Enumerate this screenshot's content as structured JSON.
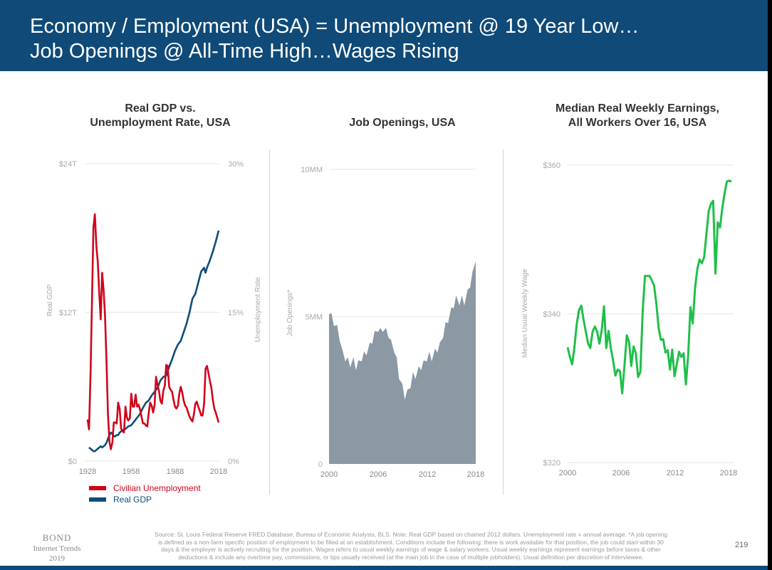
{
  "header": {
    "line1": "Economy / Employment (USA) = Unemployment @ 19 Year Low…",
    "line2": "Job Openings @ All-Time High…Wages Rising"
  },
  "colors": {
    "header_bg": "#0f4a78",
    "unemployment": "#d0021b",
    "gdp": "#0e4d78",
    "job_openings": "#8c98a3",
    "earnings": "#1fbf4a"
  },
  "chart_data": [
    {
      "type": "line",
      "title_line1": "Real GDP vs.",
      "title_line2": "Unemployment Rate, USA",
      "ylabel": "Real GDP",
      "y2label": "Unemployment Rate",
      "ylim": [
        0,
        24
      ],
      "y2lim": [
        0,
        30
      ],
      "xlim": [
        1928,
        2018
      ],
      "y_ticks": [
        "$0",
        "$12T",
        "$24T"
      ],
      "y2_ticks": [
        "0%",
        "15%",
        "30%"
      ],
      "x_ticks": [
        "1928",
        "1958",
        "1988",
        "2018"
      ],
      "grid": "horizontal",
      "legend": [
        "Civilian Unemployment",
        "Real GDP"
      ],
      "legend_position": "bottom-left",
      "series": [
        {
          "name": "Civilian Unemployment",
          "axis": "right",
          "x": [
            1928,
            1929,
            1930,
            1931,
            1932,
            1933,
            1934,
            1935,
            1936,
            1937,
            1938,
            1939,
            1940,
            1941,
            1942,
            1943,
            1944,
            1945,
            1946,
            1947,
            1948,
            1949,
            1950,
            1951,
            1952,
            1953,
            1954,
            1955,
            1956,
            1957,
            1958,
            1959,
            1960,
            1961,
            1962,
            1963,
            1964,
            1965,
            1966,
            1967,
            1968,
            1969,
            1970,
            1971,
            1972,
            1973,
            1974,
            1975,
            1976,
            1977,
            1978,
            1979,
            1980,
            1981,
            1982,
            1983,
            1984,
            1985,
            1986,
            1987,
            1988,
            1989,
            1990,
            1991,
            1992,
            1993,
            1994,
            1995,
            1996,
            1997,
            1998,
            1999,
            2000,
            2001,
            2002,
            2003,
            2004,
            2005,
            2006,
            2007,
            2008,
            2009,
            2010,
            2011,
            2012,
            2013,
            2014,
            2015,
            2016,
            2017,
            2018
          ],
          "values": [
            4.2,
            3.2,
            8.7,
            15.9,
            23.6,
            24.9,
            21.7,
            20.1,
            16.9,
            14.3,
            19.0,
            17.2,
            14.6,
            9.9,
            4.7,
            1.9,
            1.2,
            1.9,
            3.9,
            3.9,
            3.8,
            5.9,
            5.3,
            3.3,
            3.0,
            2.9,
            5.5,
            4.4,
            4.1,
            4.3,
            6.8,
            5.5,
            5.5,
            6.7,
            5.5,
            5.7,
            5.2,
            4.5,
            3.8,
            3.8,
            3.6,
            3.5,
            4.9,
            5.9,
            5.6,
            4.9,
            5.6,
            8.5,
            7.7,
            7.1,
            6.1,
            5.8,
            7.1,
            7.6,
            9.7,
            9.6,
            7.5,
            7.2,
            7.0,
            6.2,
            5.5,
            5.3,
            5.6,
            6.8,
            7.5,
            6.9,
            6.1,
            5.6,
            5.4,
            4.9,
            4.5,
            4.2,
            4.0,
            4.7,
            5.8,
            6.0,
            5.5,
            5.1,
            4.6,
            4.6,
            5.8,
            9.3,
            9.6,
            8.9,
            8.1,
            7.4,
            6.2,
            5.3,
            4.9,
            4.4,
            3.9
          ]
        },
        {
          "name": "Real GDP",
          "axis": "left",
          "x": [
            1929,
            1930,
            1931,
            1932,
            1933,
            1934,
            1935,
            1936,
            1937,
            1938,
            1939,
            1940,
            1941,
            1942,
            1943,
            1944,
            1945,
            1946,
            1947,
            1948,
            1949,
            1950,
            1952,
            1954,
            1956,
            1958,
            1960,
            1962,
            1964,
            1966,
            1968,
            1970,
            1972,
            1974,
            1976,
            1978,
            1980,
            1982,
            1984,
            1986,
            1988,
            1990,
            1992,
            1994,
            1996,
            1998,
            2000,
            2002,
            2004,
            2006,
            2008,
            2009,
            2010,
            2012,
            2014,
            2016,
            2018
          ],
          "values": [
            1.1,
            1.0,
            0.9,
            0.8,
            0.8,
            0.9,
            1.0,
            1.1,
            1.2,
            1.1,
            1.2,
            1.3,
            1.5,
            1.8,
            2.1,
            2.3,
            2.2,
            2.0,
            2.0,
            2.1,
            2.1,
            2.3,
            2.5,
            2.6,
            2.8,
            2.9,
            3.2,
            3.5,
            3.8,
            4.3,
            4.7,
            4.9,
            5.3,
            5.6,
            5.9,
            6.5,
            6.8,
            6.9,
            7.6,
            8.2,
            8.9,
            9.4,
            9.7,
            10.4,
            11.1,
            12.0,
            13.1,
            13.5,
            14.4,
            15.3,
            15.6,
            15.2,
            15.6,
            16.2,
            16.9,
            17.7,
            18.6
          ]
        }
      ]
    },
    {
      "type": "area",
      "title": "Job Openings, USA",
      "ylabel": "Job Openings*",
      "ylim": [
        0,
        10
      ],
      "xlim": [
        2000,
        2018
      ],
      "y_ticks": [
        "0",
        "5MM",
        "10MM"
      ],
      "x_ticks": [
        "2000",
        "2006",
        "2012",
        "2018"
      ],
      "grid": "horizontal",
      "series": [
        {
          "x": [
            2000.0,
            2000.3,
            2000.6,
            2001.0,
            2001.3,
            2001.6,
            2002.0,
            2002.3,
            2002.6,
            2003.0,
            2003.3,
            2003.6,
            2004.0,
            2004.3,
            2004.6,
            2005.0,
            2005.3,
            2005.6,
            2006.0,
            2006.3,
            2006.6,
            2007.0,
            2007.3,
            2007.6,
            2008.0,
            2008.3,
            2008.6,
            2009.0,
            2009.3,
            2009.6,
            2010.0,
            2010.3,
            2010.6,
            2011.0,
            2011.3,
            2011.6,
            2012.0,
            2012.3,
            2012.6,
            2013.0,
            2013.3,
            2013.6,
            2014.0,
            2014.3,
            2014.6,
            2015.0,
            2015.3,
            2015.6,
            2016.0,
            2016.3,
            2016.6,
            2017.0,
            2017.3,
            2017.6,
            2018.0
          ],
          "values": [
            5.2,
            5.0,
            4.8,
            4.6,
            4.3,
            3.8,
            3.6,
            3.5,
            3.4,
            3.5,
            3.3,
            3.4,
            3.6,
            3.7,
            3.8,
            4.0,
            4.2,
            4.4,
            4.6,
            4.5,
            4.6,
            4.5,
            4.4,
            4.1,
            3.9,
            3.5,
            3.0,
            2.6,
            2.3,
            2.4,
            2.7,
            3.0,
            3.0,
            3.2,
            3.3,
            3.4,
            3.6,
            3.7,
            3.6,
            3.8,
            3.9,
            4.0,
            4.4,
            4.7,
            4.9,
            5.2,
            5.4,
            5.6,
            5.5,
            5.6,
            5.5,
            5.8,
            6.1,
            6.4,
            7.0
          ]
        }
      ]
    },
    {
      "type": "line",
      "title_line1": "Median Real Weekly Earnings,",
      "title_line2": "All Workers Over 16, USA",
      "ylabel": "Median Usual Weekly Wage",
      "ylim": [
        320,
        360
      ],
      "xlim": [
        2000,
        2018
      ],
      "y_ticks": [
        "$320",
        "$340",
        "$360"
      ],
      "x_ticks": [
        "2000",
        "2006",
        "2012",
        "2018"
      ],
      "grid": "horizontal",
      "series": [
        {
          "x": [
            2000.0,
            2000.25,
            2000.5,
            2000.75,
            2001.0,
            2001.25,
            2001.5,
            2001.75,
            2002.0,
            2002.25,
            2002.5,
            2002.75,
            2003.0,
            2003.25,
            2003.5,
            2003.75,
            2004.0,
            2004.25,
            2004.5,
            2004.75,
            2005.0,
            2005.25,
            2005.5,
            2005.75,
            2006.0,
            2006.25,
            2006.5,
            2006.75,
            2007.0,
            2007.25,
            2007.5,
            2007.75,
            2008.0,
            2008.25,
            2008.5,
            2008.75,
            2009.0,
            2009.25,
            2009.5,
            2009.75,
            2010.0,
            2010.25,
            2010.5,
            2010.75,
            2011.0,
            2011.25,
            2011.5,
            2011.75,
            2012.0,
            2012.25,
            2012.5,
            2012.75,
            2013.0,
            2013.25,
            2013.5,
            2013.75,
            2014.0,
            2014.25,
            2014.5,
            2014.75,
            2015.0,
            2015.25,
            2015.5,
            2015.75,
            2016.0,
            2016.25,
            2016.5,
            2016.75,
            2017.0,
            2017.25,
            2017.5,
            2017.75,
            2018.0
          ],
          "values": [
            335.5,
            334.2,
            333.2,
            335.5,
            338.6,
            340.5,
            341.1,
            339.2,
            337.6,
            336.0,
            335.4,
            337.6,
            338.3,
            337.6,
            336.0,
            337.8,
            341.0,
            335.4,
            337.7,
            335.4,
            333.7,
            331.7,
            332.5,
            332.3,
            329.3,
            333.1,
            337.1,
            336.2,
            333.0,
            335.6,
            334.7,
            331.5,
            332.2,
            340.3,
            345.1,
            345.1,
            345.1,
            344.5,
            343.8,
            341.4,
            338.1,
            336.5,
            336.6,
            334.8,
            335.1,
            332.5,
            335.2,
            331.6,
            333.2,
            334.9,
            334.2,
            334.7,
            330.5,
            334.4,
            340.9,
            338.7,
            343.4,
            346.0,
            347.3,
            346.8,
            347.6,
            350.7,
            353.8,
            354.8,
            355.2,
            345.4,
            352.3,
            351.6,
            354.2,
            356.2,
            357.8,
            357.9,
            357.8
          ]
        }
      ]
    }
  ],
  "footer": {
    "logo_line1": "BOND",
    "logo_line2": "Internet Trends",
    "logo_line3": "2019",
    "source_line1": "Source: St. Louis Federal Reserve FRED Database, Bureau of Economic Analysis, BLS.  Note: Real GDP based on chained 2012 dollars. Unemployment rate = annual average. *A job opening",
    "source_line2": "is defined as a non-farm specific position of employment to be filled at an establishment. Conditions include the following: there is work available for that position, the job could start within 30",
    "source_line3": "days & the employer is actively recruiting for the position.  Wages refers to usual weekly earnings of wage & salary workers.  Usual weekly earnings represent earnings before taxes & other",
    "source_line4": "deductions & include any overtime pay, commissions, or tips usually received (at the main job in the case of multiple jobholders). Usual definition per discretion of interviewee.",
    "page_number": "219"
  }
}
